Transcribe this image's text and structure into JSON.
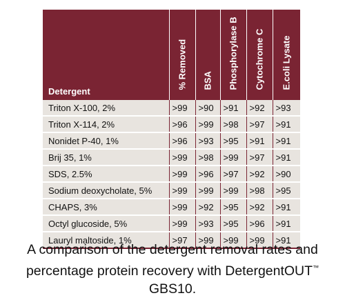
{
  "table": {
    "headers": [
      "Detergent",
      "% Removed",
      "BSA",
      "Phosphorylase B",
      "Cytochrome C",
      "E.coli Lysate"
    ],
    "rows": [
      [
        "Triton X-100, 2%",
        ">99",
        ">90",
        ">91",
        ">92",
        ">93"
      ],
      [
        "Triton X-114, 2%",
        ">96",
        ">99",
        ">98",
        ">97",
        ">91"
      ],
      [
        "Nonidet P-40, 1%",
        ">96",
        ">93",
        ">95",
        ">91",
        ">91"
      ],
      [
        "Brij 35, 1%",
        ">99",
        ">98",
        ">99",
        ">97",
        ">91"
      ],
      [
        "SDS, 2.5%",
        ">99",
        ">96",
        ">97",
        ">92",
        ">90"
      ],
      [
        "Sodium deoxycholate, 5%",
        ">99",
        ">99",
        ">99",
        ">98",
        ">95"
      ],
      [
        "CHAPS, 3%",
        ">99",
        ">92",
        ">95",
        ">92",
        ">91"
      ],
      [
        "Octyl glucoside, 5%",
        ">99",
        ">93",
        ">95",
        ">96",
        ">91"
      ],
      [
        "Lauryl maltoside, 1%",
        ">97",
        ">99",
        ">99",
        ">99",
        ">91"
      ]
    ]
  },
  "caption": {
    "line1": "A comparison of the detergent removal rates and",
    "line2_text": "percentage protein recovery with DetergentOUT",
    "line2_sup": "™",
    "line3": "GBS10."
  },
  "colors": {
    "header_bg": "#7a2433",
    "cell_bg": "#e8e4df",
    "rule": "#7a2433"
  }
}
